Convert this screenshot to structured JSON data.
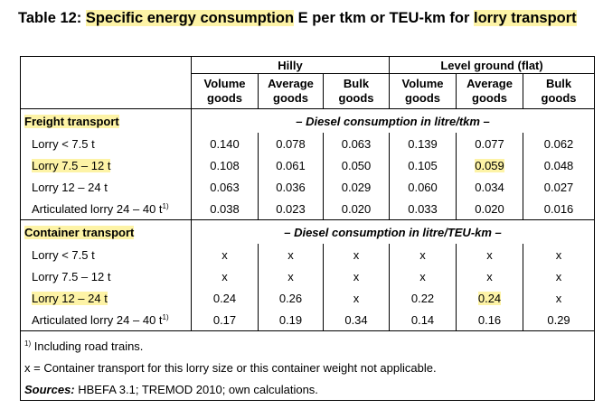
{
  "title": {
    "prefix": "Table 12: ",
    "hl1": "Specific energy consumption",
    "mid": " E per tkm or TEU-km for ",
    "hl2": "lorry transport"
  },
  "header": {
    "groups": [
      "Hilly",
      "Level ground (flat)"
    ],
    "columns": [
      [
        "Volume",
        "goods"
      ],
      [
        "Average",
        "goods"
      ],
      [
        "Bulk",
        "goods"
      ],
      [
        "Volume",
        "goods"
      ],
      [
        "Average",
        "goods"
      ],
      [
        "Bulk",
        "goods"
      ]
    ]
  },
  "sections": [
    {
      "label": "Freight transport",
      "unit_note": "– Diesel consumption in litre/tkm –",
      "rows": [
        {
          "label": "Lorry < 7.5 t",
          "sup": "",
          "highlight": false,
          "values": [
            "0.140",
            "0.078",
            "0.063",
            "0.139",
            "0.077",
            "0.062"
          ],
          "hl_index": -1
        },
        {
          "label": "Lorry 7.5 – 12 t",
          "sup": "",
          "highlight": true,
          "values": [
            "0.108",
            "0.061",
            "0.050",
            "0.105",
            "0.059",
            "0.048"
          ],
          "hl_index": 4
        },
        {
          "label": "Lorry 12 – 24 t",
          "sup": "",
          "highlight": false,
          "values": [
            "0.063",
            "0.036",
            "0.029",
            "0.060",
            "0.034",
            "0.027"
          ],
          "hl_index": -1
        },
        {
          "label": "Articulated lorry 24 – 40 t",
          "sup": "1)",
          "highlight": false,
          "values": [
            "0.038",
            "0.023",
            "0.020",
            "0.033",
            "0.020",
            "0.016"
          ],
          "hl_index": -1
        }
      ]
    },
    {
      "label": "Container transport",
      "unit_note": "– Diesel consumption in litre/TEU-km –",
      "rows": [
        {
          "label": "Lorry < 7.5 t",
          "sup": "",
          "highlight": false,
          "values": [
            "x",
            "x",
            "x",
            "x",
            "x",
            "x"
          ],
          "hl_index": -1
        },
        {
          "label": "Lorry 7.5 – 12 t",
          "sup": "",
          "highlight": false,
          "values": [
            "x",
            "x",
            "x",
            "x",
            "x",
            "x"
          ],
          "hl_index": -1
        },
        {
          "label": "Lorry 12 – 24 t",
          "sup": "",
          "highlight": true,
          "values": [
            "0.24",
            "0.26",
            "x",
            "0.22",
            "0.24",
            "x"
          ],
          "hl_index": 4
        },
        {
          "label": "Articulated lorry 24 – 40 t",
          "sup": "1)",
          "highlight": false,
          "values": [
            "0.17",
            "0.19",
            "0.34",
            "0.14",
            "0.16",
            "0.29"
          ],
          "hl_index": -1
        }
      ]
    }
  ],
  "footnotes": {
    "note1_sup": "1)",
    "note1_text": " Including road trains.",
    "note2": "x = Container transport for this lorry size or this container weight not applicable.",
    "sources_label": "Sources:",
    "sources_text": " HBEFA 3.1; TREMOD 2010; own calculations."
  },
  "colors": {
    "highlight": "#fdf3a6"
  }
}
